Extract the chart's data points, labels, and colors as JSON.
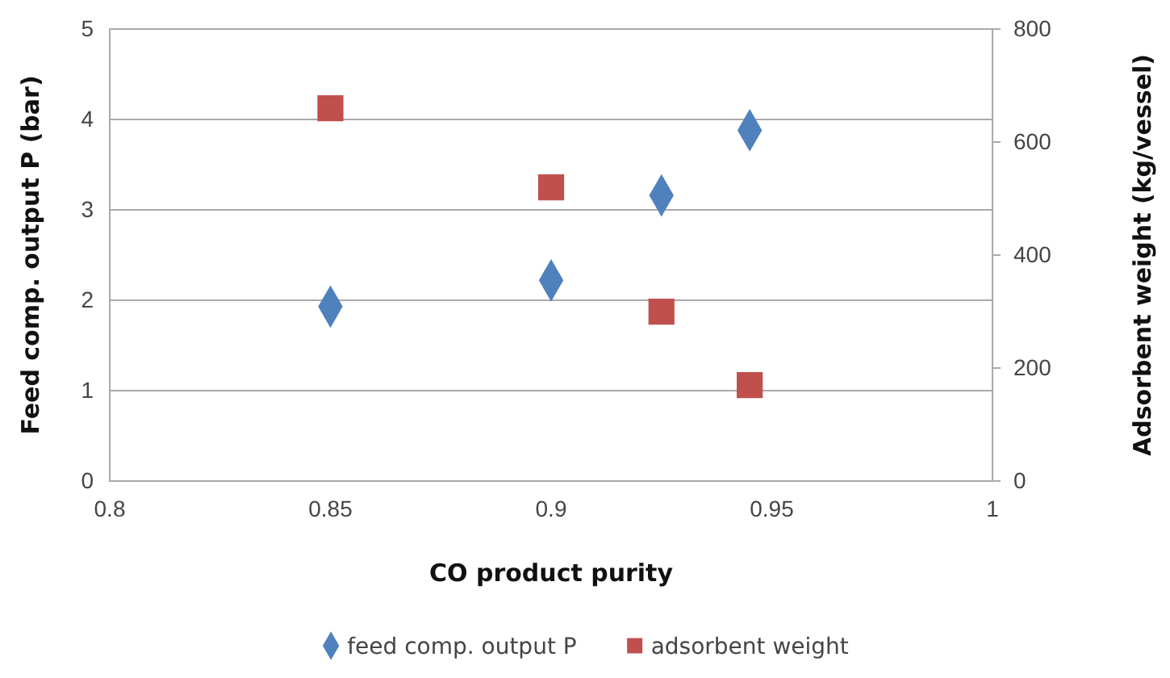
{
  "chart_data": {
    "type": "scatter",
    "xlabel": "CO product purity",
    "ylabel": "Feed comp. output P (bar)",
    "y2label": "Adsorbent weight (kg/vessel)",
    "x": [
      0.85,
      0.9,
      0.925,
      0.945
    ],
    "series": [
      {
        "name": "feed comp. output P",
        "color": "#4f81bd",
        "marker": "diamond",
        "values": [
          1.93,
          2.22,
          3.16,
          3.88
        ]
      },
      {
        "name": "adsorbent weight",
        "color": "#c0504d",
        "marker": "square",
        "axis": "y2",
        "values": [
          660,
          520,
          300,
          170
        ]
      }
    ],
    "xlim": [
      0.8,
      1
    ],
    "xticks": [
      0.8,
      0.85,
      0.9,
      0.95,
      1
    ],
    "ylim": [
      0,
      5
    ],
    "yticks": [
      0,
      1,
      2,
      3,
      4,
      5
    ],
    "y2lim": [
      0,
      800
    ],
    "y2ticks": [
      0,
      200,
      400,
      600,
      800
    ],
    "grid": "y",
    "legend": "bottom"
  }
}
